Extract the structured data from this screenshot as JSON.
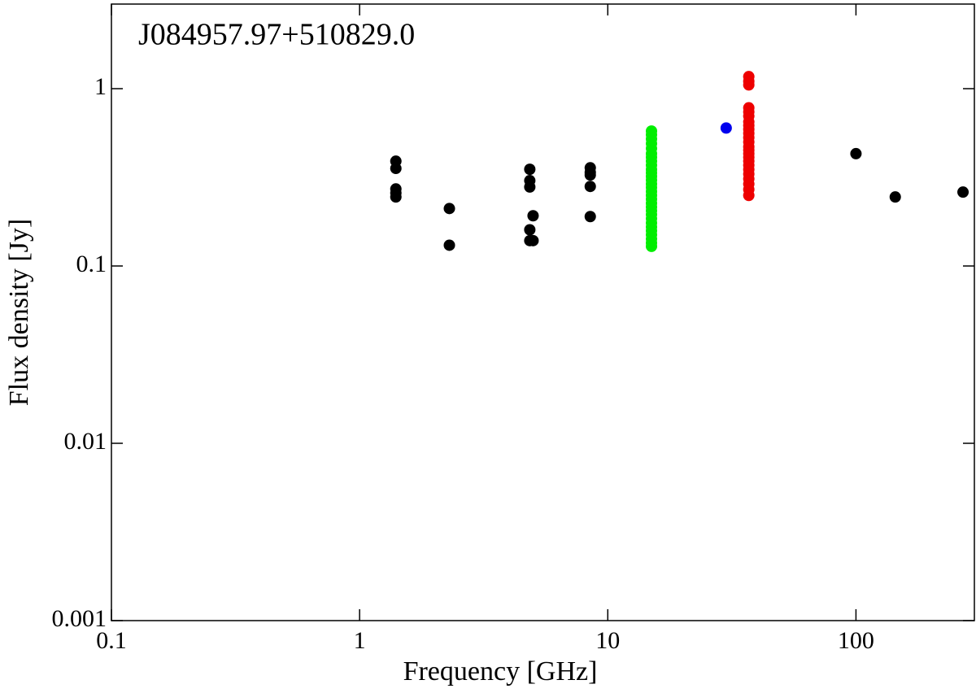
{
  "chart_data": {
    "type": "scatter",
    "title": "J084957.97+510829.0",
    "xlabel": "Frequency [GHz]",
    "ylabel": "Flux density [Jy]",
    "xscale": "log",
    "yscale": "log",
    "xlim": [
      0.1,
      300
    ],
    "ylim": [
      0.001,
      3
    ],
    "xticks": [
      0.1,
      1,
      10,
      100
    ],
    "yticks": [
      0.001,
      0.01,
      0.1,
      1
    ],
    "series": [
      {
        "color": "#000000",
        "x": [
          1.4,
          1.4,
          1.4,
          1.4,
          1.4,
          2.3,
          2.3,
          4.85,
          4.85,
          4.85,
          4.85,
          4.85,
          5.0,
          5.0,
          8.5,
          8.5,
          8.5,
          8.5,
          8.5,
          100,
          144,
          270
        ],
        "values": [
          0.39,
          0.355,
          0.272,
          0.258,
          0.245,
          0.211,
          0.131,
          0.351,
          0.303,
          0.279,
          0.16,
          0.139,
          0.192,
          0.139,
          0.358,
          0.337,
          0.326,
          0.281,
          0.19,
          0.43,
          0.245,
          0.261
        ]
      },
      {
        "color": "#00ee00",
        "x": [
          15,
          15,
          15,
          15,
          15,
          15,
          15,
          15,
          15,
          15,
          15,
          15,
          15,
          15,
          15,
          15,
          15,
          15,
          15,
          15,
          15,
          15,
          15,
          15,
          15,
          15,
          15,
          15,
          15,
          15
        ],
        "values": [
          0.129,
          0.135,
          0.142,
          0.15,
          0.158,
          0.166,
          0.175,
          0.185,
          0.195,
          0.205,
          0.215,
          0.226,
          0.238,
          0.25,
          0.263,
          0.277,
          0.29,
          0.305,
          0.32,
          0.335,
          0.35,
          0.37,
          0.39,
          0.41,
          0.43,
          0.46,
          0.49,
          0.52,
          0.55,
          0.577
        ]
      },
      {
        "color": "#0000ee",
        "x": [
          30
        ],
        "values": [
          0.6
        ]
      },
      {
        "color": "#ee0000",
        "x": [
          37,
          37,
          37,
          37,
          37,
          37,
          37,
          37,
          37,
          37,
          37,
          37,
          37,
          37,
          37,
          37,
          37,
          37,
          37,
          37,
          37,
          37,
          37,
          37
        ],
        "values": [
          0.25,
          0.27,
          0.29,
          0.31,
          0.33,
          0.35,
          0.37,
          0.39,
          0.41,
          0.43,
          0.45,
          0.47,
          0.5,
          0.53,
          0.56,
          0.59,
          0.62,
          0.65,
          0.7,
          0.74,
          0.78,
          1.05,
          1.1,
          1.17
        ]
      }
    ]
  }
}
